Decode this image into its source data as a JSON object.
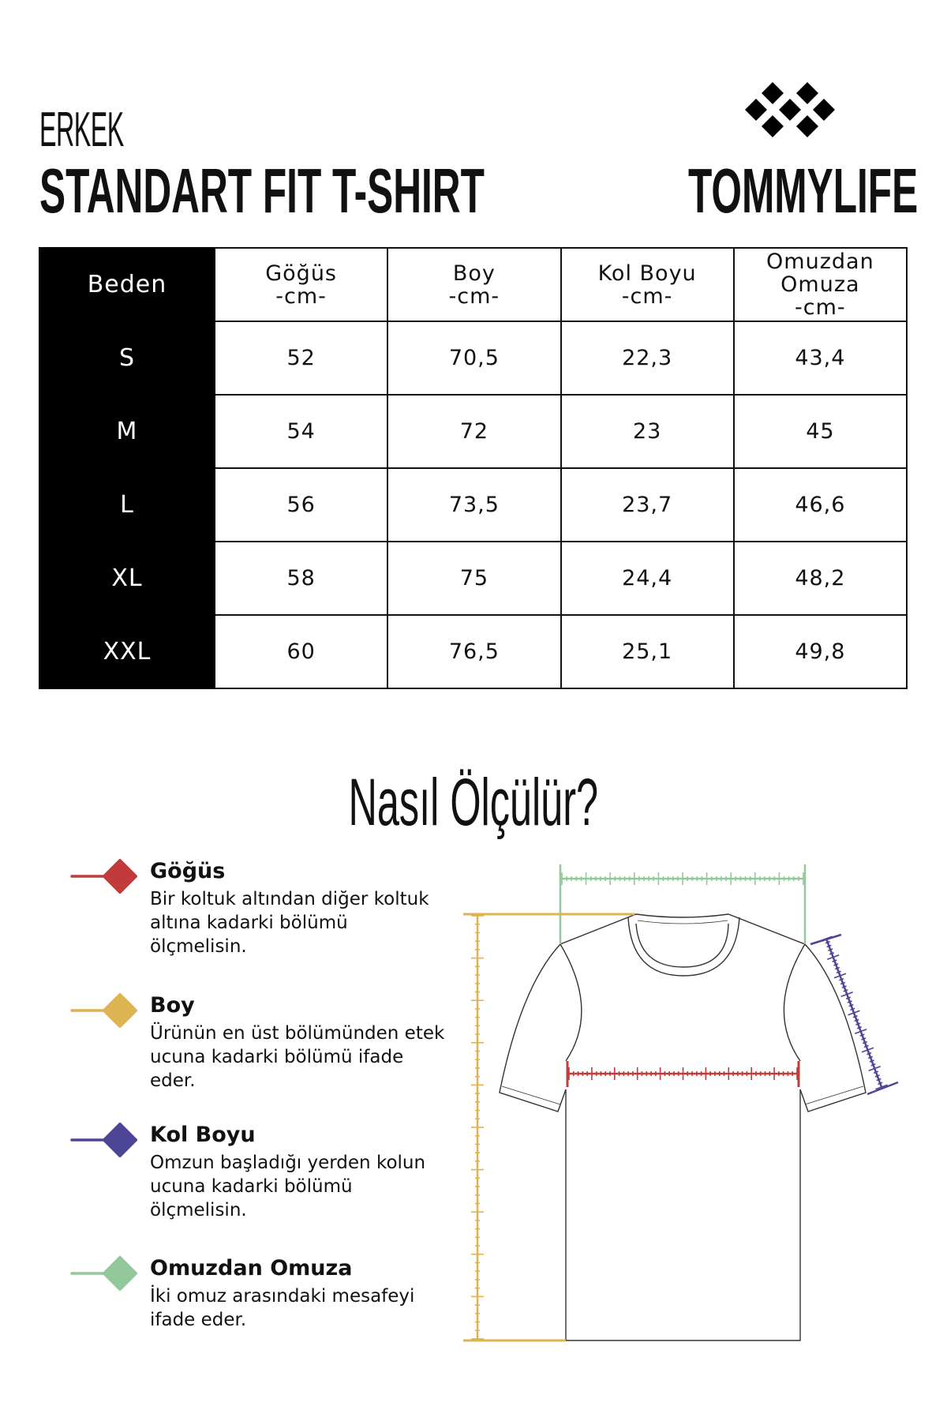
{
  "header": {
    "subtitle": "ERKEK",
    "title": "STANDART FIT T-SHIRT",
    "brand": "TOMMYLIFE"
  },
  "table": {
    "columns": [
      "Beden",
      "Göğüs\n-cm-",
      "Boy\n-cm-",
      "Kol Boyu\n-cm-",
      "Omuzdan\nOmuza\n-cm-"
    ],
    "rows": [
      [
        "S",
        "52",
        "70,5",
        "22,3",
        "43,4"
      ],
      [
        "M",
        "54",
        "72",
        "23",
        "45"
      ],
      [
        "L",
        "56",
        "73,5",
        "23,7",
        "46,6"
      ],
      [
        "XL",
        "58",
        "75",
        "24,4",
        "48,2"
      ],
      [
        "XXL",
        "60",
        "76,5",
        "25,1",
        "49,8"
      ]
    ]
  },
  "howto": {
    "title": "Nasıl Ölçülür?"
  },
  "legend": [
    {
      "title": "Göğüs",
      "text": "Bir koltuk altından diğer koltuk altına kadarki bölümü ölçmelisin.",
      "color": "#c23b3b"
    },
    {
      "title": "Boy",
      "text": "Ürünün en üst bölümünden etek ucuna kadarki bölümü ifade eder.",
      "color": "#deb352"
    },
    {
      "title": "Kol Boyu",
      "text": "Omzun başladığı yerden kolun ucuna kadarki bölümü ölçmelisin.",
      "color": "#4d4596"
    },
    {
      "title": "Omuzdan Omuza",
      "text": "İki omuz arasındaki mesafeyi ifade eder.",
      "color": "#93c99a"
    }
  ]
}
